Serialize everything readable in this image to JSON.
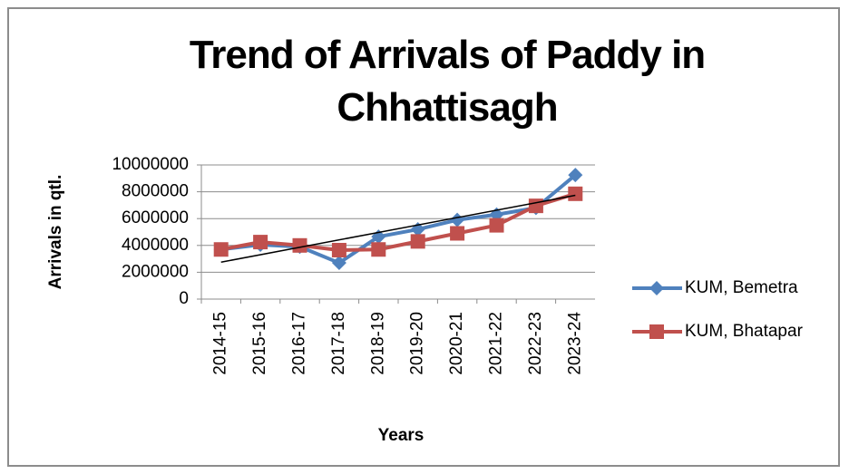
{
  "chart_data": {
    "type": "line",
    "title": "Trend of Arrivals of Paddy in Chhattisagh",
    "x_label": "Years",
    "y_label": "Arrivals in qtl.",
    "categories": [
      "2014-15",
      "2015-16",
      "2016-17",
      "2017-18",
      "2018-19",
      "2019-20",
      "2020-21",
      "2021-22",
      "2022-23",
      "2023-24"
    ],
    "series": [
      {
        "name": "KUM, Bemetra",
        "color": "#4f81bd",
        "marker": "diamond",
        "values": [
          3700000,
          4050000,
          3900000,
          2700000,
          4650000,
          5200000,
          5900000,
          6300000,
          6800000,
          9250000
        ]
      },
      {
        "name": "KUM, Bhatapar",
        "color": "#c0504d",
        "marker": "square",
        "values": [
          3700000,
          4250000,
          4000000,
          3650000,
          3700000,
          4300000,
          4900000,
          5500000,
          6950000,
          7850000
        ]
      }
    ],
    "trendline": {
      "series": 0,
      "type": "linear",
      "color": "#000000"
    },
    "ylim": [
      0,
      10000000
    ],
    "yticks": [
      0,
      2000000,
      4000000,
      6000000,
      8000000,
      10000000
    ],
    "grid": true,
    "legend": "right"
  }
}
